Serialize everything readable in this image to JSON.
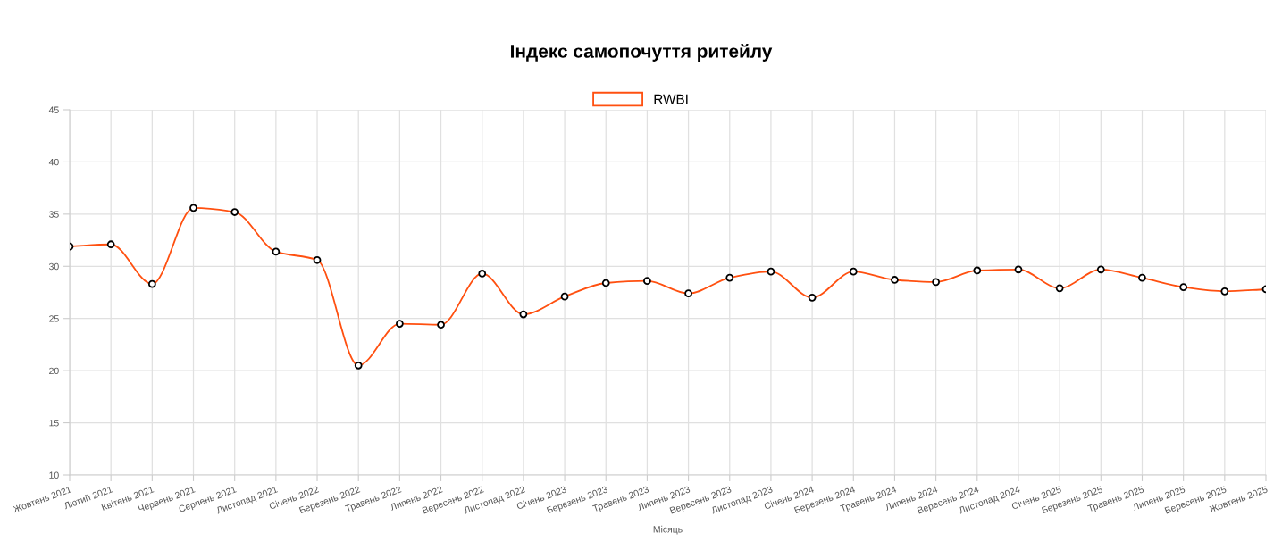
{
  "chart_data": {
    "type": "line",
    "title": "Індекс самопочуття ритейлу",
    "xlabel": "Місяць",
    "categories": [
      "Жовтень 2021",
      "Лютий 2021",
      "Квітень 2021",
      "Червень 2021",
      "Серпень 2021",
      "Листопад 2021",
      "Січень 2022",
      "Березень 2022",
      "Травень 2022",
      "Липень 2022",
      "Вересень 2022",
      "Листопад 2022",
      "Січень 2023",
      "Березень 2023",
      "Травень 2023",
      "Липень 2023",
      "Вересень 2023",
      "Листопад 2023",
      "Січень 2024",
      "Березень 2024",
      "Травень 2024",
      "Липень 2024",
      "Вересень 2024",
      "Листопад 2024",
      "Січень 2025",
      "Березень 2025",
      "Травень 2025",
      "Липень 2025",
      "Вересень 2025",
      "Жовтень 2025"
    ],
    "series": [
      {
        "name": "RWBI",
        "color": "#ff5010",
        "values": [
          31.9,
          32.1,
          28.3,
          35.6,
          35.2,
          31.4,
          30.6,
          20.5,
          24.5,
          24.4,
          29.3,
          25.4,
          27.1,
          28.4,
          28.6,
          27.4,
          28.9,
          29.5,
          27.0,
          29.5,
          28.7,
          28.5,
          29.6,
          29.7,
          27.9,
          29.7,
          28.9,
          28.0,
          27.6,
          27.8
        ]
      }
    ],
    "ylim": [
      10,
      45
    ],
    "yticks": [
      10,
      15,
      20,
      25,
      30,
      35,
      40,
      45
    ],
    "grid": true,
    "legend": "top",
    "marker": "circle",
    "line_style": "solid"
  }
}
